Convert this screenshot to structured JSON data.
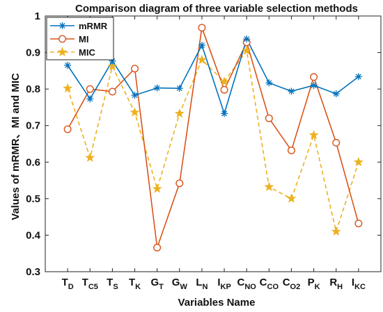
{
  "chart_data": {
    "type": "line",
    "title": "Comparison diagram of three variable selection methods",
    "xlabel": "Variables Name",
    "ylabel": "Values of mRMR、MI and MIC",
    "ylim": [
      0.3,
      1.0
    ],
    "yticks": [
      "0.3",
      "0.4",
      "0.5",
      "0.6",
      "0.7",
      "0.8",
      "0.9",
      "1"
    ],
    "categories": [
      {
        "main": "T",
        "sub": "D"
      },
      {
        "main": "T",
        "sub": "C5"
      },
      {
        "main": "T",
        "sub": "S"
      },
      {
        "main": "T",
        "sub": "K"
      },
      {
        "main": "G",
        "sub": "T"
      },
      {
        "main": "G",
        "sub": "W"
      },
      {
        "main": "L",
        "sub": "N"
      },
      {
        "main": "I",
        "sub": "KP"
      },
      {
        "main": "C",
        "sub": "NO"
      },
      {
        "main": "C",
        "sub": "CO"
      },
      {
        "main": "C",
        "sub": "O2"
      },
      {
        "main": "P",
        "sub": "K"
      },
      {
        "main": "R",
        "sub": "H"
      },
      {
        "main": "I",
        "sub": "KC"
      }
    ],
    "series": [
      {
        "name": "mRMR",
        "color": "#0072BD",
        "marker": "asterisk",
        "line": "solid",
        "values": [
          0.865,
          0.773,
          0.877,
          0.783,
          0.803,
          0.802,
          0.92,
          0.733,
          0.937,
          0.817,
          0.794,
          0.81,
          0.787,
          0.834
        ]
      },
      {
        "name": "MI",
        "color": "#D95319",
        "marker": "circle",
        "line": "solid",
        "values": [
          0.69,
          0.8,
          0.793,
          0.856,
          0.366,
          0.542,
          0.968,
          0.798,
          0.928,
          0.72,
          0.632,
          0.833,
          0.653,
          0.432
        ]
      },
      {
        "name": "MIC",
        "color": "#EDB120",
        "marker": "star",
        "line": "dashed",
        "values": [
          0.802,
          0.612,
          0.862,
          0.736,
          0.527,
          0.733,
          0.88,
          0.82,
          0.905,
          0.532,
          0.5,
          0.674,
          0.41,
          0.6
        ]
      }
    ],
    "grid": false,
    "legend_position": "top-left"
  }
}
